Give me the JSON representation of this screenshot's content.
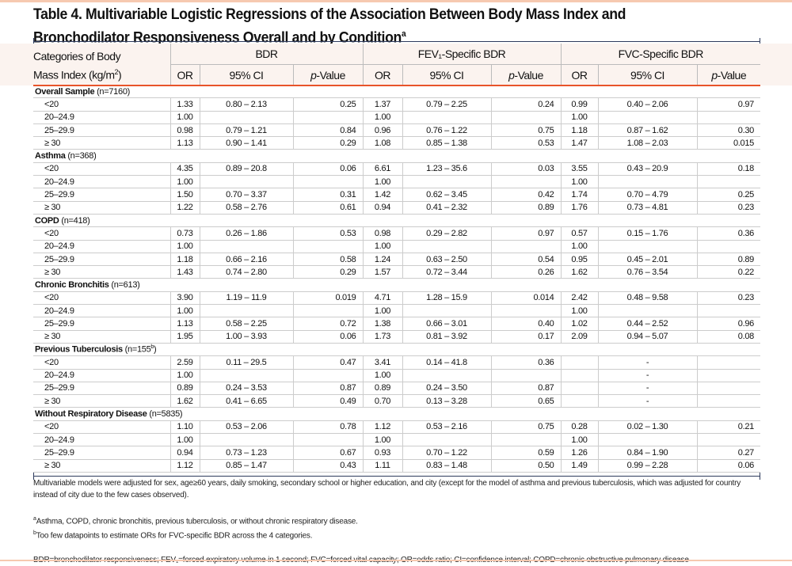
{
  "title": "Table 4. Multivariable Logistic Regressions of the Association Between Body Mass Index and Bronchodilator Responsiveness Overall and by Condition",
  "title_sup": "a",
  "header": {
    "category_line1": "Categories of Body",
    "category_line2": "Mass Index (kg/m",
    "category_sup": "2",
    "category_end": ")",
    "groups": [
      "BDR",
      "FEV₁-Specific BDR",
      "FVC-Specific BDR"
    ],
    "subcols": [
      "OR",
      "95% CI",
      "p-Value"
    ]
  },
  "groups": [
    {
      "name": "Overall Sample",
      "n": "(n=7160)",
      "rows": [
        [
          "<20",
          "1.33",
          "0.80 – 2.13",
          "0.25",
          "1.37",
          "0.79 – 2.25",
          "0.24",
          "0.99",
          "0.40 – 2.06",
          "0.97"
        ],
        [
          "20–24.9",
          "1.00",
          "",
          "",
          "1.00",
          "",
          "",
          "1.00",
          "",
          ""
        ],
        [
          "25–29.9",
          "0.98",
          "0.79 – 1.21",
          "0.84",
          "0.96",
          "0.76 – 1.22",
          "0.75",
          "1.18",
          "0.87 – 1.62",
          "0.30"
        ],
        [
          "≥ 30",
          "1.13",
          "0.90 – 1.41",
          "0.29",
          "1.08",
          "0.85 – 1.38",
          "0.53",
          "1.47",
          "1.08 – 2.03",
          "0.015"
        ]
      ]
    },
    {
      "name": "Asthma",
      "n": "(n=368)",
      "rows": [
        [
          "<20",
          "4.35",
          "0.89 – 20.8",
          "0.06",
          "6.61",
          "1.23 – 35.6",
          "0.03",
          "3.55",
          "0.43 – 20.9",
          "0.18"
        ],
        [
          "20–24.9",
          "1.00",
          "",
          "",
          "1.00",
          "",
          "",
          "1.00",
          "",
          ""
        ],
        [
          "25–29.9",
          "1.50",
          "0.70 – 3.37",
          "0.31",
          "1.42",
          "0.62 – 3.45",
          "0.42",
          "1.74",
          "0.70 – 4.79",
          "0.25"
        ],
        [
          "≥ 30",
          "1.22",
          "0.58 – 2.76",
          "0.61",
          "0.94",
          "0.41 – 2.32",
          "0.89",
          "1.76",
          "0.73 – 4.81",
          "0.23"
        ]
      ]
    },
    {
      "name": "COPD",
      "n": "(n=418)",
      "rows": [
        [
          "<20",
          "0.73",
          "0.26 – 1.86",
          "0.53",
          "0.98",
          "0.29 – 2.82",
          "0.97",
          "0.57",
          "0.15 – 1.76",
          "0.36"
        ],
        [
          "20–24.9",
          "1.00",
          "",
          "",
          "1.00",
          "",
          "",
          "1.00",
          "",
          ""
        ],
        [
          "25–29.9",
          "1.18",
          "0.66 – 2.16",
          "0.58",
          "1.24",
          "0.63 – 2.50",
          "0.54",
          "0.95",
          "0.45 – 2.01",
          "0.89"
        ],
        [
          "≥ 30",
          "1.43",
          "0.74 – 2.80",
          "0.29",
          "1.57",
          "0.72 – 3.44",
          "0.26",
          "1.62",
          "0.76 – 3.54",
          "0.22"
        ]
      ]
    },
    {
      "name": "Chronic Bronchitis",
      "n": "(n=613)",
      "rows": [
        [
          "<20",
          "3.90",
          "1.19 – 11.9",
          "0.019",
          "4.71",
          "1.28 – 15.9",
          "0.014",
          "2.42",
          "0.48 – 9.58",
          "0.23"
        ],
        [
          "20–24.9",
          "1.00",
          "",
          "",
          "1.00",
          "",
          "",
          "1.00",
          "",
          ""
        ],
        [
          "25–29.9",
          "1.13",
          "0.58 – 2.25",
          "0.72",
          "1.38",
          "0.66 – 3.01",
          "0.40",
          "1.02",
          "0.44 – 2.52",
          "0.96"
        ],
        [
          "≥ 30",
          "1.95",
          "1.00 – 3.93",
          "0.06",
          "1.73",
          "0.81 – 3.92",
          "0.17",
          "2.09",
          "0.94 – 5.07",
          "0.08"
        ]
      ]
    },
    {
      "name": "Previous Tuberculosis",
      "n": "(n=155",
      "n_sup": "b",
      "n_end": ")",
      "rows": [
        [
          "<20",
          "2.59",
          "0.11 – 29.5",
          "0.47",
          "3.41",
          "0.14 – 41.8",
          "0.36",
          "",
          "-",
          ""
        ],
        [
          "20–24.9",
          "1.00",
          "",
          "",
          "1.00",
          "",
          "",
          "",
          "-",
          ""
        ],
        [
          "25–29.9",
          "0.89",
          "0.24 – 3.53",
          "0.87",
          "0.89",
          "0.24 – 3.50",
          "0.87",
          "",
          "-",
          ""
        ],
        [
          "≥ 30",
          "1.62",
          "0.41 – 6.65",
          "0.49",
          "0.70",
          "0.13 – 3.28",
          "0.65",
          "",
          "-",
          ""
        ]
      ]
    },
    {
      "name": "Without Respiratory Disease",
      "n": "(n=5835)",
      "rows": [
        [
          "<20",
          "1.10",
          "0.53 – 2.06",
          "0.78",
          "1.12",
          "0.53 – 2.16",
          "0.75",
          "0.28",
          "0.02 – 1.30",
          "0.21"
        ],
        [
          "20–24.9",
          "1.00",
          "",
          "",
          "1.00",
          "",
          "",
          "1.00",
          "",
          ""
        ],
        [
          "25–29.9",
          "0.94",
          "0.73 – 1.23",
          "0.67",
          "0.93",
          "0.70 – 1.22",
          "0.59",
          "1.26",
          "0.84 – 1.90",
          "0.27"
        ],
        [
          "≥ 30",
          "1.12",
          "0.85 – 1.47",
          "0.43",
          "1.11",
          "0.83 – 1.48",
          "0.50",
          "1.49",
          "0.99 – 2.28",
          "0.06"
        ]
      ]
    }
  ],
  "notes": {
    "model": "Multivariable models were adjusted for sex, age≥60 years, daily smoking, secondary school or higher education, and city (except for the model of asthma and previous tuberculosis, which was adjusted for country instead of city due to the few cases observed).",
    "a_mark": "a",
    "a": "Asthma, COPD, chronic bronchitis, previous tuberculosis, or without chronic respiratory disease.",
    "b_mark": "b",
    "b": "Too few datapoints to estimate ORs for FVC-specific BDR across the 4 categories.",
    "abbrev": "BDR=bronchodilator responsiveness; FEV₁=forced expiratory volume in 1 second; FVC=forced vital capacity; OR=odds ratio; CI=confidence interval; COPD=chronic obstructive pulmonary disease"
  },
  "colors": {
    "accent": "#e8542a",
    "rule": "#2d3a5c",
    "header_band": "#fbf3ef"
  }
}
